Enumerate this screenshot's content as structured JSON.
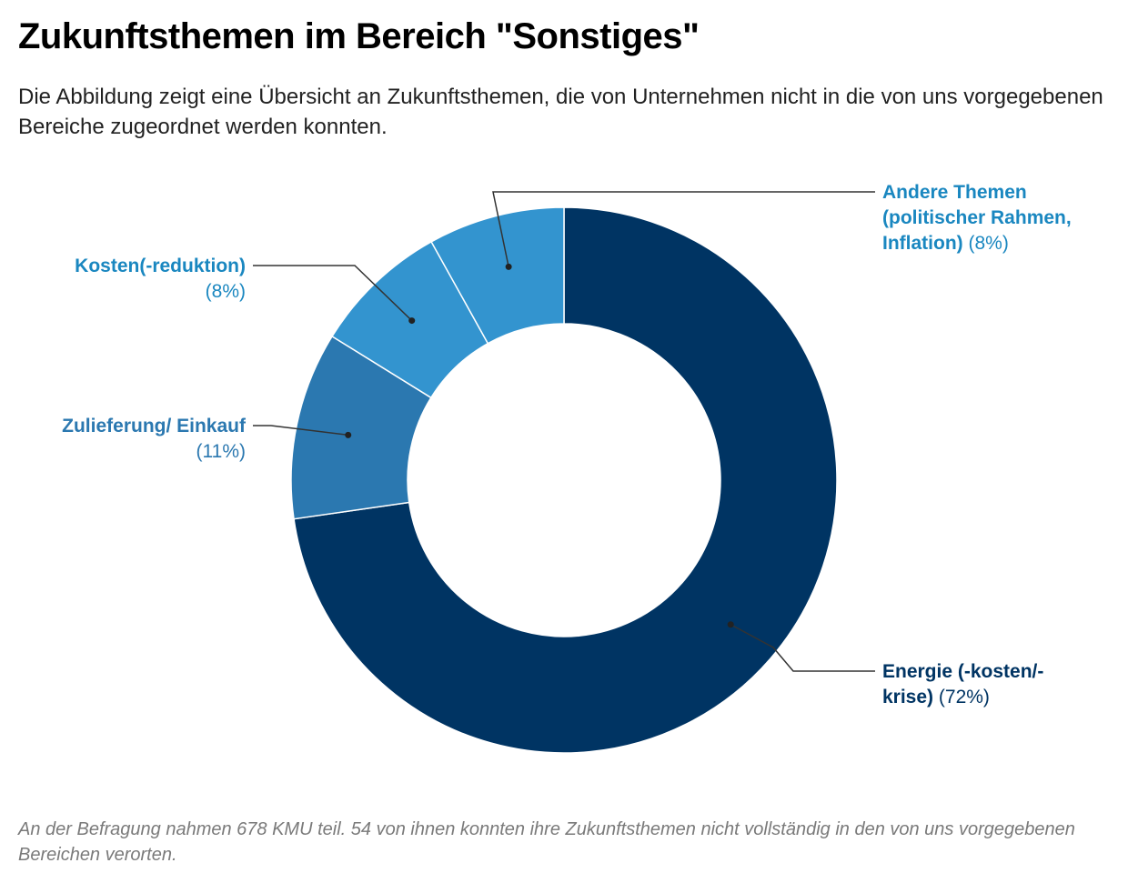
{
  "title": "Zukunftsthemen im Bereich \"Sonstiges\"",
  "subtitle": "Die Abbildung zeigt eine Übersicht an Zukunftsthemen, die von Unternehmen nicht in die von uns vorgegebenen Bereiche zugeordnet werden konnten.",
  "footnote": "An der Befragung nahmen 678 KMU teil. 54 von ihnen konnten ihre Zukunftsthemen nicht vollständig in den von uns vorgegebenen Bereichen verorten.",
  "chart_data": {
    "type": "pie",
    "variant": "donut",
    "title": "Zukunftsthemen im Bereich \"Sonstiges\"",
    "slices": [
      {
        "key": "energie",
        "name": "Energie (-kosten/-krise)",
        "label_line1": "Energie (-kosten/-",
        "label_line2": "krise)",
        "value": 72,
        "value_label": "(72%)",
        "color": "#003463"
      },
      {
        "key": "zulieferung",
        "name": "Zulieferung/ Einkauf",
        "label_line1": "Zulieferung/ Einkauf",
        "value": 11,
        "value_label": "(11%)",
        "color": "#2b78b0"
      },
      {
        "key": "kosten",
        "name": "Kosten(-reduktion)",
        "label_line1": "Kosten(-reduktion)",
        "value": 8,
        "value_label": "(8%)",
        "color": "#3394cf"
      },
      {
        "key": "andere",
        "name": "Andere Themen (politischer Rahmen, Inflation)",
        "label_line1": "Andere Themen",
        "label_line2": "(politischer Rahmen,",
        "label_line3": "Inflation)",
        "value": 8,
        "value_label": "(8%)",
        "color": "#3394cf"
      }
    ]
  }
}
